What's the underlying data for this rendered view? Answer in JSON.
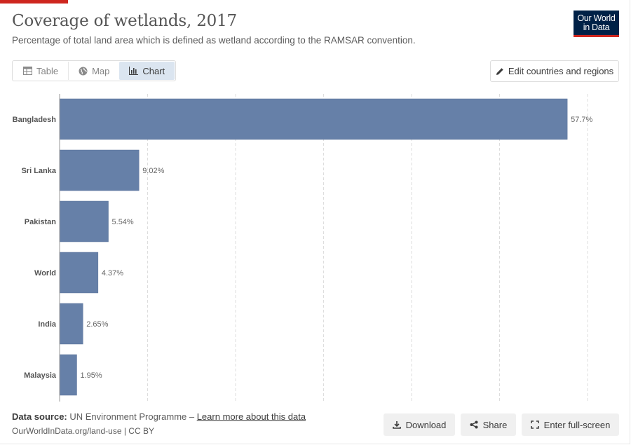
{
  "header": {
    "title": "Coverage of wetlands, 2017",
    "subtitle": "Percentage of total land area which is defined as wetland according to the RAMSAR convention.",
    "logo_line1": "Our World",
    "logo_line2": "in Data"
  },
  "tabs": [
    {
      "label": "Table",
      "icon": "table-icon"
    },
    {
      "label": "Map",
      "icon": "globe-icon"
    },
    {
      "label": "Chart",
      "icon": "chart-icon",
      "active": true
    }
  ],
  "toolbar": {
    "edit_label": "Edit countries and regions"
  },
  "footer": {
    "source_prefix": "Data source:",
    "source_text": " UN Environment Programme – ",
    "source_link": "Learn more about this data",
    "url_text": "OurWorldInData.org/land-use | CC BY",
    "download_label": "Download",
    "share_label": "Share",
    "fullscreen_label": "Enter full-screen"
  },
  "colors": {
    "bar": "#6680a8",
    "accent": "#ce261e",
    "brand": "#002147",
    "active_tab": "#dbe5f0"
  },
  "chart_data": {
    "type": "bar",
    "orientation": "horizontal",
    "categories": [
      "Bangladesh",
      "Sri Lanka",
      "Pakistan",
      "World",
      "India",
      "Malaysia"
    ],
    "values": [
      57.7,
      9.02,
      5.54,
      4.37,
      2.65,
      1.95
    ],
    "value_labels": [
      "57.7%",
      "9.02%",
      "5.54%",
      "4.37%",
      "2.65%",
      "1.95%"
    ],
    "xlim": [
      0,
      60
    ],
    "grid": true
  }
}
